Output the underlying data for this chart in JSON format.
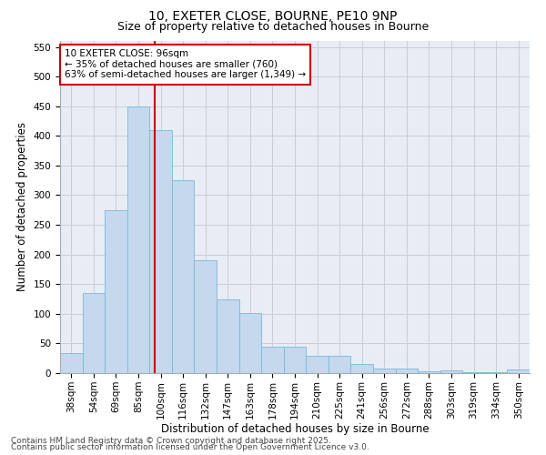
{
  "title1": "10, EXETER CLOSE, BOURNE, PE10 9NP",
  "title2": "Size of property relative to detached houses in Bourne",
  "xlabel": "Distribution of detached houses by size in Bourne",
  "ylabel": "Number of detached properties",
  "categories": [
    "38sqm",
    "54sqm",
    "69sqm",
    "85sqm",
    "100sqm",
    "116sqm",
    "132sqm",
    "147sqm",
    "163sqm",
    "178sqm",
    "194sqm",
    "210sqm",
    "225sqm",
    "241sqm",
    "256sqm",
    "272sqm",
    "288sqm",
    "303sqm",
    "319sqm",
    "334sqm",
    "350sqm"
  ],
  "values": [
    33,
    135,
    275,
    450,
    410,
    325,
    190,
    125,
    102,
    44,
    44,
    29,
    29,
    15,
    7,
    8,
    3,
    4,
    2,
    2,
    6
  ],
  "bar_color": "#c5d8ed",
  "bar_edge_color": "#7ab8d9",
  "vline_color": "#cc0000",
  "annotation_text": "10 EXETER CLOSE: 96sqm\n← 35% of detached houses are smaller (760)\n63% of semi-detached houses are larger (1,349) →",
  "annotation_box_color": "#cc0000",
  "ylim": [
    0,
    560
  ],
  "yticks": [
    0,
    50,
    100,
    150,
    200,
    250,
    300,
    350,
    400,
    450,
    500,
    550
  ],
  "grid_color": "#c8cdd8",
  "bg_color": "#e8edf5",
  "footer1": "Contains HM Land Registry data © Crown copyright and database right 2025.",
  "footer2": "Contains public sector information licensed under the Open Government Licence v3.0.",
  "title_fontsize": 10,
  "subtitle_fontsize": 9,
  "axis_label_fontsize": 8.5,
  "tick_fontsize": 7.5,
  "annotation_fontsize": 7.5,
  "footer_fontsize": 6.5
}
